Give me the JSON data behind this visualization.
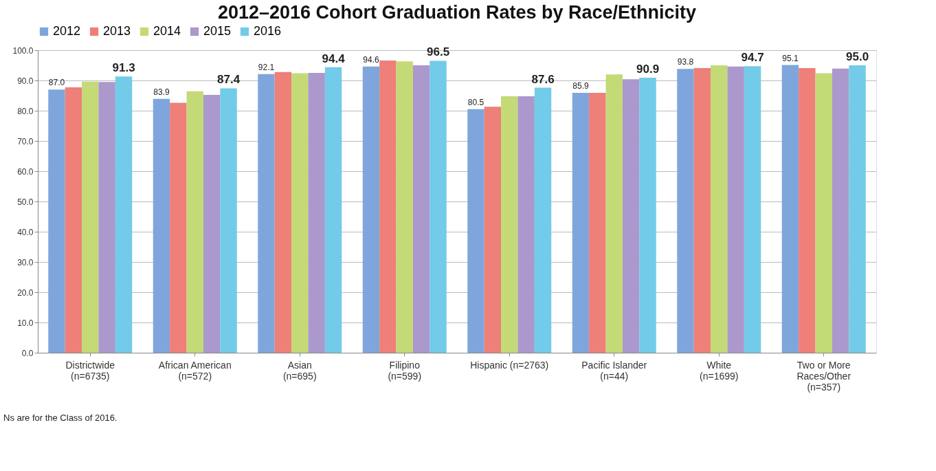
{
  "chart_data": {
    "type": "bar",
    "title": "2012–2016 Cohort Graduation Rates by Race/Ethnicity",
    "categories": [
      "Districtwide\n(n=6735)",
      "African American\n(n=572)",
      "Asian\n(n=695)",
      "Filipino\n(n=599)",
      "Hispanic (n=2763)",
      "Pacific Islander\n(n=44)",
      "White\n(n=1699)",
      "Two or More\nRaces/Other\n(n=357)"
    ],
    "series": [
      {
        "name": "2012",
        "color": "#7ea6dc",
        "values": [
          87.0,
          83.9,
          92.1,
          94.6,
          80.5,
          85.9,
          93.8,
          95.1
        ],
        "value_labels": [
          "87.0",
          "83.9",
          "92.1",
          "94.6",
          "80.5",
          "85.9",
          "93.8",
          "95.1"
        ]
      },
      {
        "name": "2013",
        "color": "#ee7f79",
        "values": [
          87.7,
          82.6,
          92.8,
          96.6,
          81.3,
          85.9,
          94.1,
          94.1
        ]
      },
      {
        "name": "2014",
        "color": "#c4da76",
        "values": [
          89.6,
          86.4,
          92.4,
          96.3,
          84.8,
          92.0,
          95.0,
          92.4
        ]
      },
      {
        "name": "2015",
        "color": "#ab98cc",
        "values": [
          89.5,
          85.2,
          92.5,
          95.0,
          84.8,
          90.4,
          94.6,
          93.9
        ]
      },
      {
        "name": "2016",
        "color": "#72cbe8",
        "values": [
          91.3,
          87.4,
          94.4,
          96.5,
          87.6,
          90.9,
          94.7,
          95.0
        ],
        "value_labels": [
          "91.3",
          "87.4",
          "94.4",
          "96.5",
          "87.6",
          "90.9",
          "94.7",
          "95.0"
        ]
      }
    ],
    "ylim": [
      0,
      100
    ],
    "yticks": [
      {
        "value": 0,
        "label": "0.0"
      },
      {
        "value": 10,
        "label": "10.0"
      },
      {
        "value": 20,
        "label": "20.0"
      },
      {
        "value": 30,
        "label": "30.0"
      },
      {
        "value": 40,
        "label": "40.0"
      },
      {
        "value": 50,
        "label": "50.0"
      },
      {
        "value": 60,
        "label": "60.0"
      },
      {
        "value": 70,
        "label": "70.0"
      },
      {
        "value": 80,
        "label": "80.0"
      },
      {
        "value": 90,
        "label": "90.0"
      },
      {
        "value": 100,
        "label": "100.0"
      }
    ],
    "grid": "y",
    "legend": "top",
    "annotations": [
      "Ns are for the Class of 2016."
    ]
  }
}
